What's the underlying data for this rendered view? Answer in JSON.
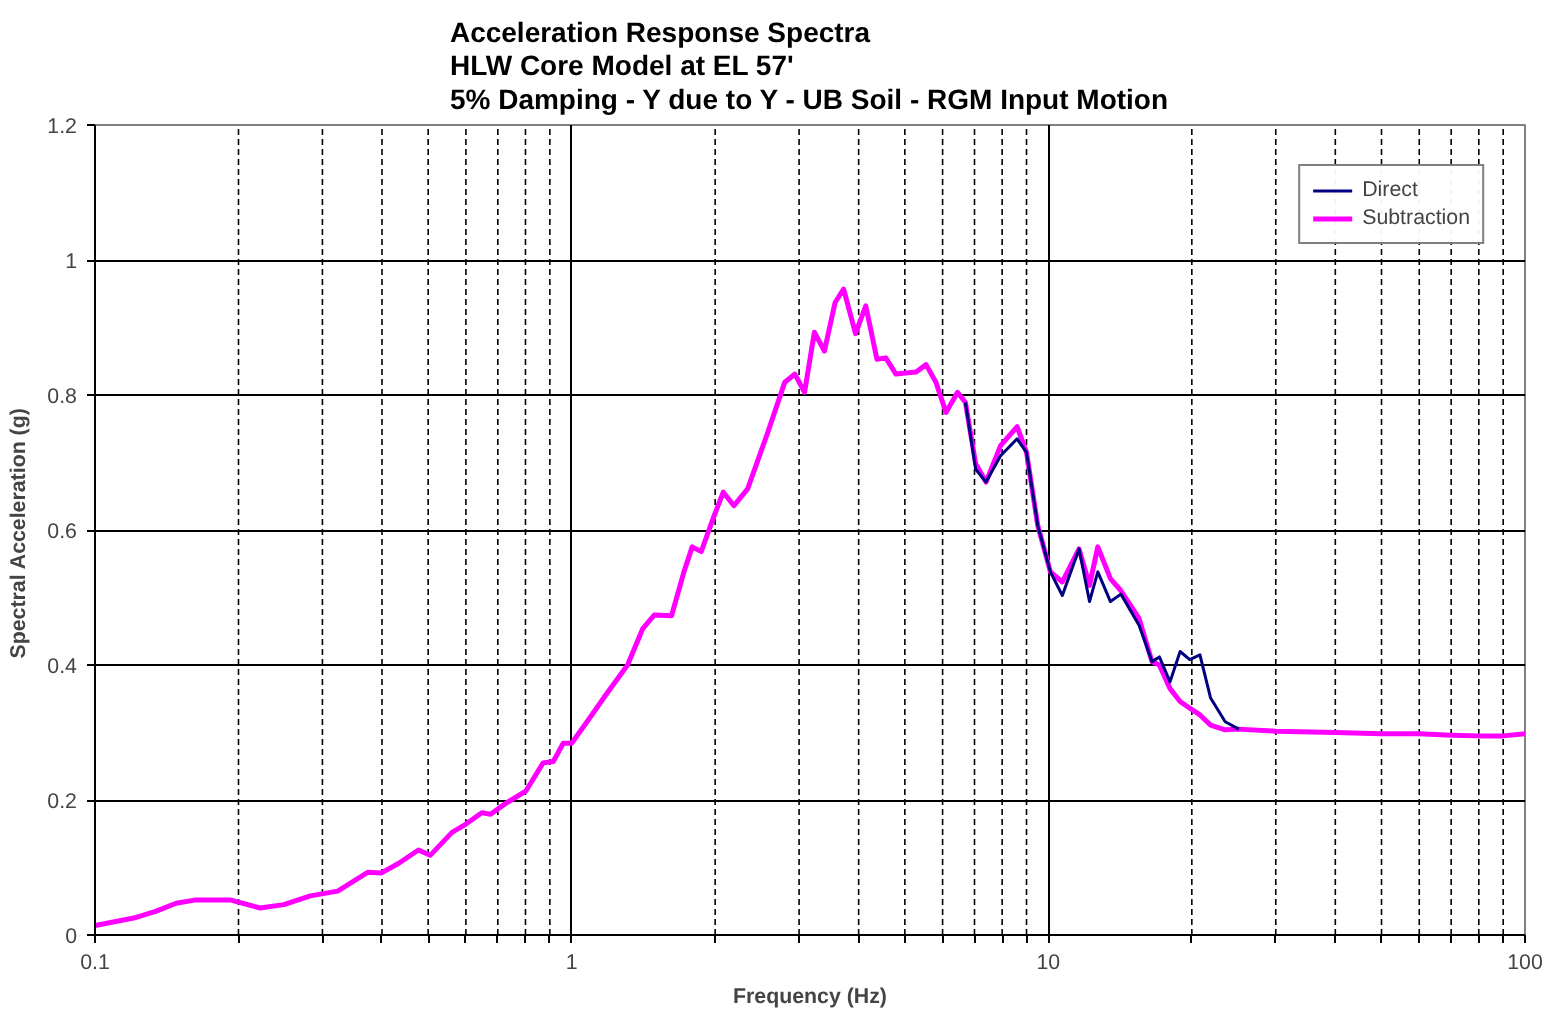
{
  "chart_data": {
    "type": "line",
    "title": "Acceleration Response Spectra\nHLW Core Model at EL 57'\n5% Damping - Y due to Y - UB Soil - RGM Input Motion",
    "xlabel": "Frequency (Hz)",
    "ylabel": "Spectral Acceleration  (g)",
    "log": "x",
    "grid": true,
    "legend": "top right",
    "line_style": "solid",
    "marker": "none",
    "xlim": [
      0.1,
      100
    ],
    "xticks": [
      0.1,
      {
        "value": 0.2,
        "label": null
      },
      {
        "value": 0.3,
        "label": null
      },
      {
        "value": 0.4,
        "label": null
      },
      {
        "value": 0.5,
        "label": null
      },
      {
        "value": 0.6,
        "label": null
      },
      {
        "value": 0.7,
        "label": null
      },
      {
        "value": 0.8,
        "label": null
      },
      {
        "value": 0.9,
        "label": null
      },
      1,
      {
        "value": 2,
        "label": null
      },
      {
        "value": 3,
        "label": null
      },
      {
        "value": 4,
        "label": null
      },
      {
        "value": 5,
        "label": null
      },
      {
        "value": 6,
        "label": null
      },
      {
        "value": 7,
        "label": null
      },
      {
        "value": 8,
        "label": null
      },
      {
        "value": 9,
        "label": null
      },
      10,
      {
        "value": 20,
        "label": null
      },
      {
        "value": 30,
        "label": null
      },
      {
        "value": 40,
        "label": null
      },
      {
        "value": 50,
        "label": null
      },
      {
        "value": 60,
        "label": null
      },
      {
        "value": 70,
        "label": null
      },
      {
        "value": 80,
        "label": null
      },
      {
        "value": 90,
        "label": null
      },
      100
    ],
    "ylim": [
      0,
      1.2
    ],
    "yticks": [
      0,
      0.2,
      0.4,
      0.6,
      0.8,
      1,
      1.2
    ],
    "x": [
      0.1,
      0.122,
      0.134,
      0.148,
      0.163,
      0.18,
      0.192,
      0.222,
      0.249,
      0.283,
      0.323,
      0.374,
      0.399,
      0.433,
      0.477,
      0.505,
      0.561,
      0.599,
      0.648,
      0.676,
      0.727,
      0.801,
      0.871,
      0.915,
      0.96,
      1.0,
      1.09,
      1.18,
      1.31,
      1.41,
      1.49,
      1.62,
      1.72,
      1.79,
      1.87,
      1.98,
      2.08,
      2.19,
      2.34,
      2.58,
      2.8,
      2.94,
      3.08,
      3.23,
      3.39,
      3.57,
      3.72,
      3.94,
      4.14,
      4.37,
      4.56,
      4.79,
      5.28,
      5.54,
      5.81,
      6.1,
      6.45,
      6.7,
      7.04,
      7.4,
      7.94,
      8.6,
      9.0,
      9.5,
      10.1,
      10.7,
      11.6,
      12.2,
      12.7,
      13.5,
      14.2,
      15.5,
      16.5,
      17.1,
      18,
      18.9,
      19.8,
      20.8,
      21.9,
      23.5,
      25.1,
      30,
      40,
      50,
      60,
      70,
      80,
      90,
      100
    ],
    "series": [
      {
        "name": "Direct",
        "color": "#000080",
        "x": [
          6.7,
          7.04,
          7.4,
          7.94,
          8.6,
          9.0,
          9.5,
          10.1,
          10.7,
          11.6,
          12.2,
          12.7,
          13.5,
          14.2,
          15.5,
          16.5,
          17.1,
          18,
          18.9,
          19.8,
          20.8,
          21.9,
          23.5,
          25.1
        ],
        "values": [
          0.789,
          0.69,
          0.671,
          0.71,
          0.735,
          0.715,
          0.607,
          0.538,
          0.503,
          0.572,
          0.494,
          0.538,
          0.494,
          0.505,
          0.459,
          0.405,
          0.412,
          0.375,
          0.42,
          0.408,
          0.415,
          0.351,
          0.316,
          0.305
        ]
      },
      {
        "name": "Subtraction",
        "color": "#ff00ff",
        "values": [
          0.014,
          0.026,
          0.035,
          0.047,
          0.052,
          0.052,
          0.052,
          0.04,
          0.045,
          0.058,
          0.065,
          0.093,
          0.092,
          0.106,
          0.126,
          0.118,
          0.152,
          0.164,
          0.181,
          0.179,
          0.195,
          0.213,
          0.255,
          0.257,
          0.284,
          0.284,
          0.321,
          0.356,
          0.4,
          0.454,
          0.474,
          0.473,
          0.538,
          0.575,
          0.568,
          0.617,
          0.656,
          0.636,
          0.661,
          0.745,
          0.819,
          0.831,
          0.804,
          0.893,
          0.865,
          0.937,
          0.957,
          0.891,
          0.932,
          0.853,
          0.855,
          0.831,
          0.834,
          0.845,
          0.819,
          0.774,
          0.804,
          0.789,
          0.698,
          0.671,
          0.725,
          0.753,
          0.715,
          0.607,
          0.538,
          0.523,
          0.572,
          0.518,
          0.575,
          0.528,
          0.51,
          0.469,
          0.405,
          0.4,
          0.365,
          0.346,
          0.336,
          0.326,
          0.311,
          0.304,
          0.305,
          0.302,
          0.3,
          0.298,
          0.298,
          0.296,
          0.295,
          0.295,
          0.298
        ]
      }
    ]
  }
}
